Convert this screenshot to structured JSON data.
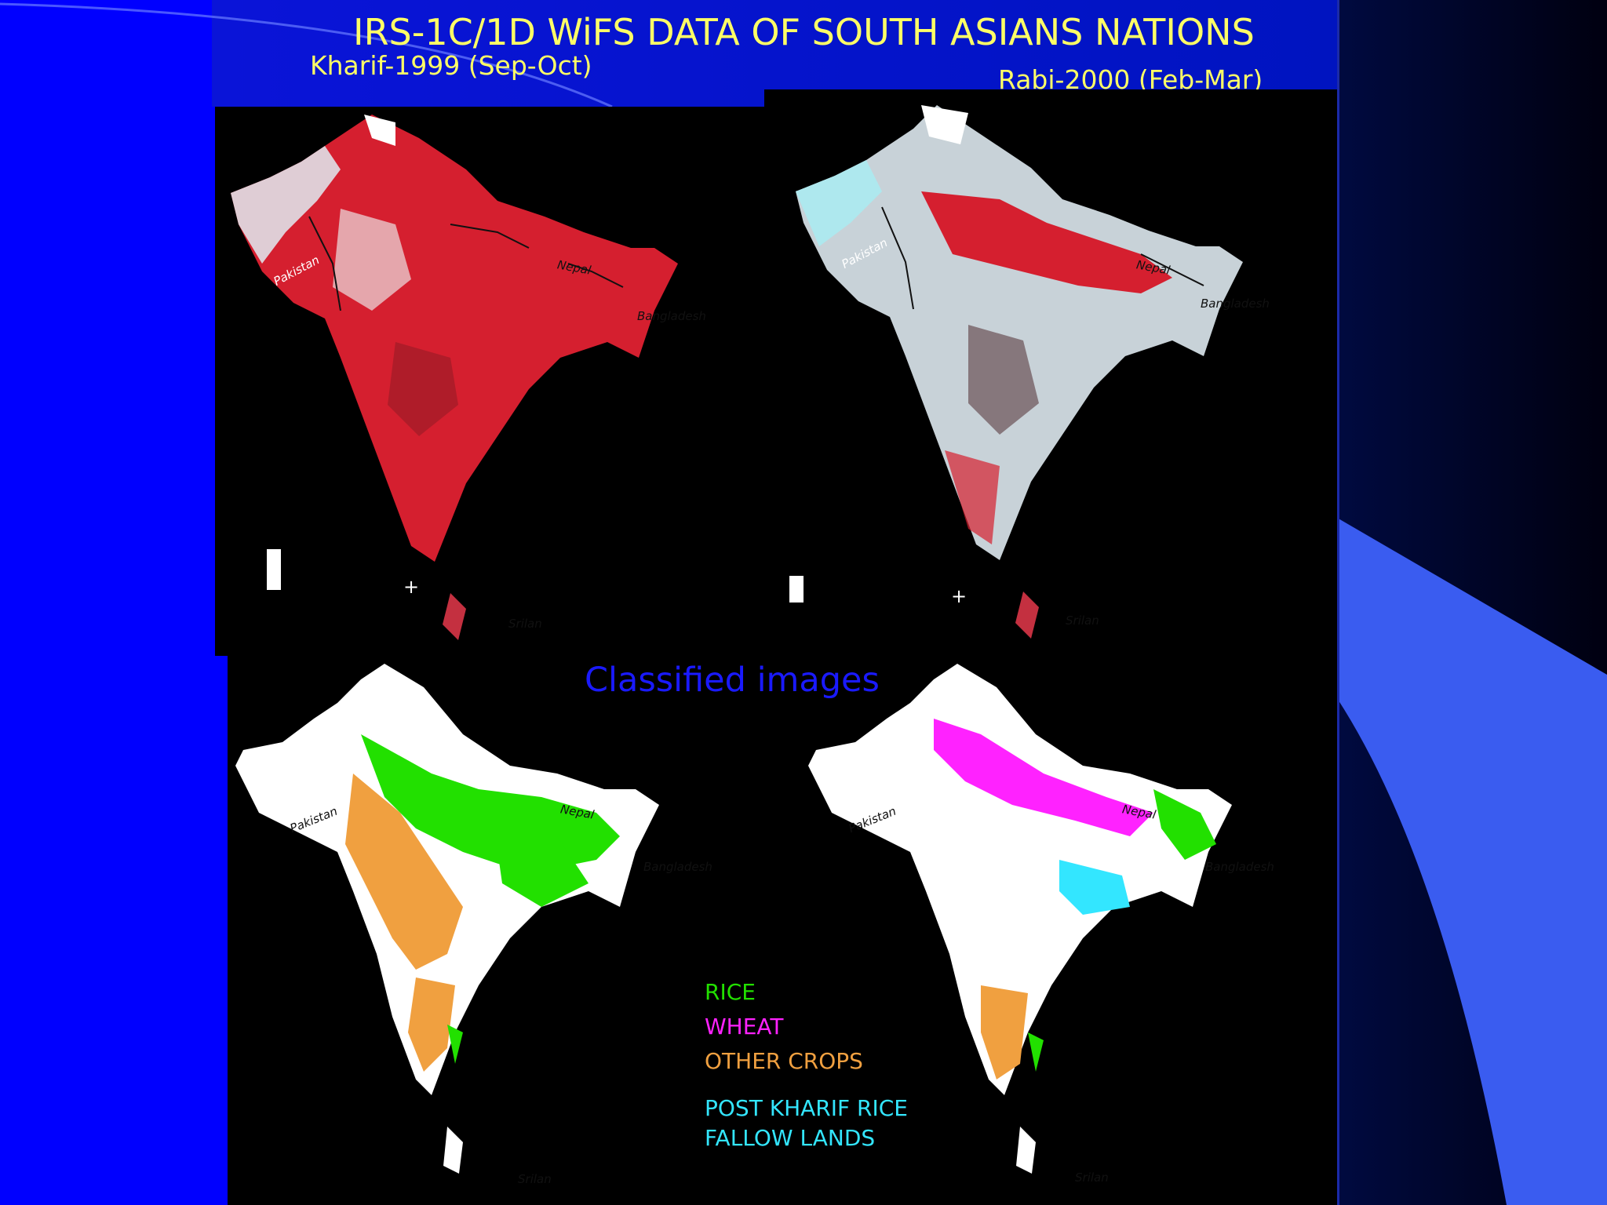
{
  "slide": {
    "title": "IRS-1C/1D WiFS DATA OF SOUTH ASIANS NATIONS",
    "subtitle_left": "Kharif-1999 (Sep-Oct)",
    "subtitle_right": "Rabi-2000 (Feb-Mar)",
    "classified_heading": "Classified images"
  },
  "map_labels": {
    "pakistan": "Pakistan",
    "nepal": "Nepal",
    "bangladesh": "Bangladesh",
    "srilanka": "Srilan"
  },
  "legend": [
    {
      "label": "RICE",
      "color": "#22e000"
    },
    {
      "label": "WHEAT",
      "color": "#ff22ff"
    },
    {
      "label": "OTHER CROPS",
      "color": "#f0a040"
    },
    {
      "label": "POST KHARIF RICE",
      "color": "#33e6ff"
    },
    {
      "label": "FALLOW LANDS",
      "color": "#33e6ff"
    }
  ],
  "colors": {
    "background": "#0000ff",
    "title_text": "#ffff66",
    "fcc_vegetation": "#d51f2f",
    "class_rice": "#22e000",
    "class_wheat": "#ff22ff",
    "class_other": "#f0a040",
    "class_fallow": "#33e6ff"
  }
}
